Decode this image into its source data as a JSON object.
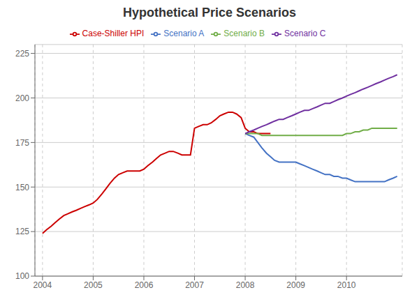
{
  "chart_data": {
    "type": "line",
    "title": "Hypothetical Price Scenarios",
    "x": [
      2004.0,
      2004.08,
      2004.17,
      2004.25,
      2004.33,
      2004.42,
      2004.5,
      2004.58,
      2004.67,
      2004.75,
      2004.83,
      2004.92,
      2005.0,
      2005.08,
      2005.17,
      2005.25,
      2005.33,
      2005.42,
      2005.5,
      2005.58,
      2005.67,
      2005.75,
      2005.83,
      2005.92,
      2006.0,
      2006.08,
      2006.17,
      2006.25,
      2006.33,
      2006.42,
      2006.5,
      2006.58,
      2006.67,
      2006.75,
      2006.83,
      2006.92,
      2007.0,
      2007.08,
      2007.17,
      2007.25,
      2007.33,
      2007.42,
      2007.5,
      2007.58,
      2007.67,
      2007.75,
      2007.83,
      2007.92,
      2008.0,
      2008.08,
      2008.17,
      2008.25,
      2008.33,
      2008.42,
      2008.5,
      2008.58,
      2008.67,
      2008.75,
      2008.83,
      2008.92,
      2009.0,
      2009.08,
      2009.17,
      2009.25,
      2009.33,
      2009.42,
      2009.5,
      2009.58,
      2009.67,
      2009.75,
      2009.83,
      2009.92,
      2010.0,
      2010.08,
      2010.17,
      2010.25,
      2010.33,
      2010.42,
      2010.5,
      2010.58,
      2010.67,
      2010.75,
      2010.83,
      2010.92,
      2011.0
    ],
    "series": [
      {
        "name": "Case-Shiller HPI",
        "color": "#cc0000",
        "values": [
          124,
          126,
          128,
          130,
          132,
          134,
          135,
          136,
          137,
          138,
          139,
          140,
          141,
          143,
          146,
          149,
          152,
          155,
          157,
          158,
          159,
          159,
          159,
          159,
          160,
          162,
          164,
          166,
          168,
          169,
          170,
          170,
          169,
          168,
          168,
          168,
          183,
          184,
          185,
          185,
          186,
          188,
          190,
          191,
          192,
          192,
          191,
          189,
          183,
          181,
          181,
          180,
          180,
          180,
          180,
          null,
          null,
          null,
          null,
          null,
          null,
          null,
          null,
          null,
          null,
          null,
          null,
          null,
          null,
          null,
          null,
          null,
          null,
          null,
          null,
          null,
          null,
          null,
          null,
          null,
          null,
          null,
          null,
          null,
          null
        ]
      },
      {
        "name": "Scenario A",
        "color": "#4472c4",
        "values": [
          null,
          null,
          null,
          null,
          null,
          null,
          null,
          null,
          null,
          null,
          null,
          null,
          null,
          null,
          null,
          null,
          null,
          null,
          null,
          null,
          null,
          null,
          null,
          null,
          null,
          null,
          null,
          null,
          null,
          null,
          null,
          null,
          null,
          null,
          null,
          null,
          null,
          null,
          null,
          null,
          null,
          null,
          null,
          null,
          null,
          null,
          null,
          null,
          180,
          179,
          178,
          175,
          172,
          169,
          167,
          165,
          164,
          164,
          164,
          164,
          164,
          163,
          162,
          161,
          160,
          159,
          158,
          157,
          157,
          156,
          156,
          155,
          155,
          154,
          153,
          153,
          153,
          153,
          153,
          153,
          153,
          153,
          154,
          155,
          156
        ]
      },
      {
        "name": "Scenario B",
        "color": "#70ad47",
        "values": [
          null,
          null,
          null,
          null,
          null,
          null,
          null,
          null,
          null,
          null,
          null,
          null,
          null,
          null,
          null,
          null,
          null,
          null,
          null,
          null,
          null,
          null,
          null,
          null,
          null,
          null,
          null,
          null,
          null,
          null,
          null,
          null,
          null,
          null,
          null,
          null,
          null,
          null,
          null,
          null,
          null,
          null,
          null,
          null,
          null,
          null,
          null,
          null,
          180,
          180,
          180,
          180,
          179,
          179,
          179,
          179,
          179,
          179,
          179,
          179,
          179,
          179,
          179,
          179,
          179,
          179,
          179,
          179,
          179,
          179,
          179,
          179,
          180,
          180,
          181,
          181,
          182,
          182,
          183,
          183,
          183,
          183,
          183,
          183,
          183
        ]
      },
      {
        "name": "Scenario C",
        "color": "#7030a0",
        "values": [
          null,
          null,
          null,
          null,
          null,
          null,
          null,
          null,
          null,
          null,
          null,
          null,
          null,
          null,
          null,
          null,
          null,
          null,
          null,
          null,
          null,
          null,
          null,
          null,
          null,
          null,
          null,
          null,
          null,
          null,
          null,
          null,
          null,
          null,
          null,
          null,
          null,
          null,
          null,
          null,
          null,
          null,
          null,
          null,
          null,
          null,
          null,
          null,
          180,
          181,
          182,
          183,
          184,
          185,
          186,
          187,
          188,
          188,
          189,
          190,
          191,
          192,
          193,
          193,
          194,
          195,
          196,
          197,
          197,
          198,
          199,
          200,
          201,
          202,
          203,
          204,
          205,
          206,
          207,
          208,
          209,
          210,
          211,
          212,
          213
        ]
      }
    ],
    "xlim": [
      2003.85,
      2011.1
    ],
    "xticks": [
      2004,
      2005,
      2006,
      2007,
      2008,
      2009,
      2010
    ],
    "ylim": [
      100,
      230
    ],
    "yticks": [
      100,
      125,
      150,
      175,
      200,
      225
    ],
    "grid": true,
    "legend": "top"
  }
}
